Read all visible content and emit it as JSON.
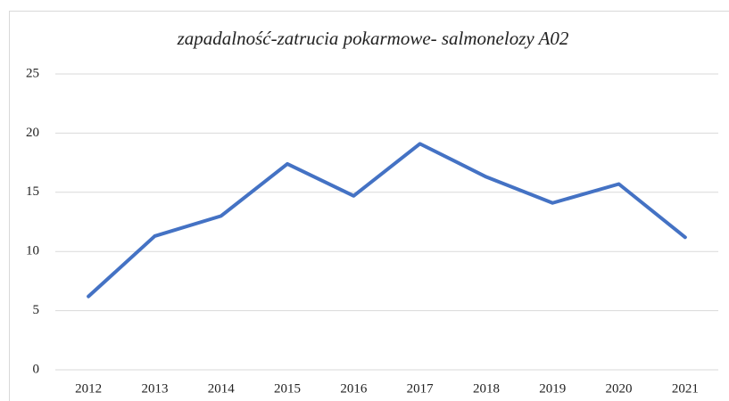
{
  "chart_data": {
    "type": "line",
    "title": "zapadalność-zatrucia pokarmowe- salmonelozy A02",
    "categories": [
      "2012",
      "2013",
      "2014",
      "2015",
      "2016",
      "2017",
      "2018",
      "2019",
      "2020",
      "2021"
    ],
    "values": [
      6.2,
      11.3,
      13.0,
      17.4,
      14.7,
      19.1,
      16.3,
      14.1,
      15.7,
      11.2
    ],
    "color": "#4472c4",
    "ylim": [
      0,
      25
    ],
    "yticks": [
      0,
      5,
      10,
      15,
      20,
      25
    ],
    "grid": true
  }
}
